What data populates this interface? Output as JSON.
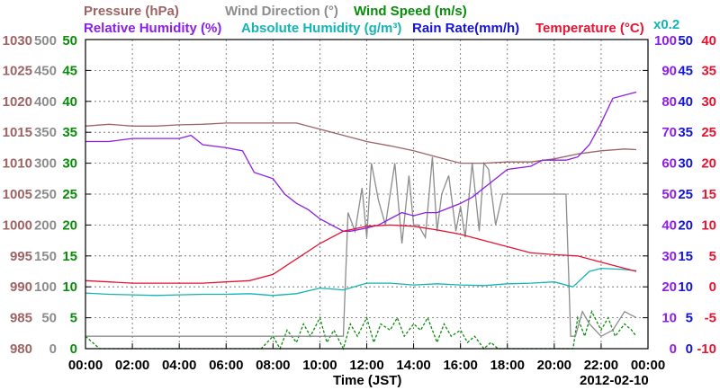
{
  "chart_data": {
    "type": "line",
    "date_label": "2012-02-10",
    "xlabel": "Time (JST)",
    "x_ticks": [
      "00:00",
      "02:00",
      "04:00",
      "06:00",
      "08:00",
      "10:00",
      "12:00",
      "14:00",
      "16:00",
      "18:00",
      "20:00",
      "22:00",
      "00:00"
    ],
    "xlim_hours": [
      0,
      24
    ],
    "grid": true,
    "legend_row1": [
      {
        "text": "Pressure (hPa)",
        "color": "#9c6464"
      },
      {
        "text": "Wind Direction (°)",
        "color": "#8c8c8c"
      },
      {
        "text": "Wind Speed (m/s)",
        "color": "#0a8c0a"
      }
    ],
    "legend_row2": [
      {
        "text": "Relative Humidity (%)",
        "color": "#8c1ee6"
      },
      {
        "text": "Absolute Humidity (g/m³)",
        "color": "#14b4b4"
      },
      {
        "text": "Rain Rate(mm/h)",
        "color": "#1414d2"
      },
      {
        "text": "Temperature (°C)",
        "color": "#e61432"
      }
    ],
    "multiplier_label": "x0.2",
    "multiplier_color": "#14b4b4",
    "axes": {
      "pressure": {
        "color": "#9c6464",
        "ticks": [
          "980",
          "985",
          "990",
          "995",
          "1000",
          "1005",
          "1010",
          "1015",
          "1020",
          "1025",
          "1030"
        ],
        "range": [
          980,
          1030
        ]
      },
      "wind_direction": {
        "color": "#8c8c8c",
        "ticks": [
          "0",
          "50",
          "100",
          "150",
          "200",
          "250",
          "300",
          "350",
          "400",
          "450",
          "500"
        ],
        "range": [
          0,
          500
        ]
      },
      "wind_speed": {
        "color": "#0a8c0a",
        "ticks": [
          "0",
          "5",
          "10",
          "15",
          "20",
          "25",
          "30",
          "35",
          "40",
          "45",
          "50"
        ],
        "range": [
          0,
          50
        ]
      },
      "relative_humidity": {
        "color": "#8c1ee6",
        "ticks": [
          "0",
          "10",
          "20",
          "30",
          "40",
          "50",
          "60",
          "70",
          "80",
          "90",
          "100"
        ],
        "range": [
          0,
          100
        ]
      },
      "absolute_humidity_rain": {
        "color": "#1414d2",
        "ticks": [
          "0",
          "5",
          "10",
          "15",
          "20",
          "25",
          "30",
          "35",
          "40",
          "45",
          "50"
        ],
        "range": [
          0,
          50
        ]
      },
      "temperature": {
        "color": "#e61432",
        "ticks": [
          "-10",
          "-5",
          "0",
          "5",
          "10",
          "15",
          "20",
          "25",
          "30",
          "35",
          "40"
        ],
        "range": [
          -10,
          40
        ]
      }
    },
    "series": [
      {
        "name": "Pressure (hPa)",
        "axis": "pressure",
        "color": "#9c6464",
        "x": [
          0,
          1,
          2,
          3,
          4,
          5,
          6,
          7,
          8,
          9,
          10,
          11,
          12,
          13,
          14,
          15,
          16,
          17,
          18,
          19,
          20,
          21,
          22,
          23,
          23.5
        ],
        "values": [
          1016.0,
          1016.3,
          1016.0,
          1016.0,
          1016.2,
          1016.3,
          1016.5,
          1016.5,
          1016.5,
          1016.5,
          1015.5,
          1014.5,
          1013.5,
          1012.8,
          1012.0,
          1011.0,
          1010.0,
          1010.0,
          1010.2,
          1010.2,
          1010.7,
          1011.5,
          1012.0,
          1012.3,
          1012.2
        ]
      },
      {
        "name": "Relative Humidity (%)",
        "axis": "relative_humidity",
        "color": "#8c1ee6",
        "x": [
          0,
          1,
          2,
          3,
          4,
          4.5,
          5,
          6,
          6.7,
          7.2,
          8,
          8.5,
          9,
          9.5,
          10,
          10.5,
          11,
          11.3,
          12,
          12.5,
          13,
          13.5,
          14,
          14.5,
          15,
          16,
          16.5,
          17,
          18,
          19,
          19.5,
          20,
          20.5,
          21,
          21.5,
          22,
          22.5,
          23,
          23.5
        ],
        "values": [
          67,
          67,
          68,
          68,
          68,
          69,
          66,
          65,
          64,
          57,
          55,
          50,
          47,
          45,
          42,
          40,
          38,
          38,
          39,
          40,
          42,
          44,
          43,
          44,
          44,
          47,
          49,
          52,
          58,
          59,
          61,
          61,
          61,
          62,
          66,
          73,
          81,
          82,
          83
        ]
      },
      {
        "name": "Absolute Humidity (g/m³)",
        "axis": "absolute_humidity_rain",
        "color": "#14b4b4",
        "x": [
          0,
          1,
          2,
          3,
          4,
          5,
          6,
          7,
          8,
          9,
          10,
          11,
          12,
          13,
          14,
          15,
          16,
          17,
          18,
          19,
          20,
          20.8,
          21.5,
          22,
          23,
          23.5
        ],
        "values": [
          9.0,
          8.8,
          8.7,
          8.6,
          8.7,
          8.8,
          8.8,
          8.9,
          8.6,
          8.9,
          9.8,
          9.5,
          10.6,
          10.6,
          10.3,
          10.5,
          10.3,
          10.2,
          10.5,
          10.6,
          10.8,
          10.0,
          12.5,
          13.0,
          12.8,
          12.6
        ]
      },
      {
        "name": "Temperature (°C)",
        "axis": "temperature",
        "color": "#e61432",
        "x": [
          0,
          1,
          2,
          3,
          4,
          5,
          6,
          7,
          8,
          9,
          10,
          11,
          12,
          13,
          14,
          15,
          16,
          17,
          18,
          19,
          20,
          21,
          22,
          23,
          23.5
        ],
        "values": [
          1.0,
          0.8,
          0.6,
          0.6,
          0.6,
          0.6,
          0.8,
          1.0,
          2.0,
          4.5,
          7.0,
          9.0,
          9.8,
          10.0,
          9.8,
          9.2,
          8.5,
          7.5,
          6.5,
          5.5,
          5.2,
          5.0,
          4.0,
          3.0,
          2.5
        ]
      },
      {
        "name": "Wind Direction (°)",
        "axis": "wind_direction",
        "color": "#8c8c8c",
        "x": [
          0,
          8,
          9,
          10,
          10.5,
          10.8,
          11,
          11.2,
          11.5,
          11.8,
          12,
          12.2,
          12.5,
          12.8,
          13,
          13.2,
          13.5,
          13.8,
          14,
          14.2,
          14.5,
          14.8,
          15,
          15.2,
          15.5,
          15.8,
          16,
          16.2,
          16.5,
          16.8,
          17,
          17.2,
          17.5,
          17.8,
          18,
          19,
          20,
          20.5,
          20.7,
          20.9,
          21.2,
          21.5,
          22,
          22.5,
          23,
          23.5
        ],
        "values": [
          20,
          20,
          20,
          20,
          20,
          20,
          20,
          220,
          190,
          260,
          180,
          300,
          240,
          200,
          250,
          300,
          170,
          280,
          200,
          200,
          180,
          310,
          190,
          250,
          280,
          190,
          230,
          180,
          300,
          190,
          300,
          290,
          200,
          250,
          250,
          250,
          250,
          250,
          20,
          20,
          60,
          40,
          20,
          30,
          60,
          50
        ]
      },
      {
        "name": "Wind Speed (m/s)",
        "axis": "wind_speed",
        "color": "#0a8c0a",
        "x": [
          0,
          0.3,
          0.6,
          1,
          2,
          3,
          4,
          5,
          6,
          7,
          7.5,
          8,
          8.3,
          8.6,
          9,
          9.3,
          9.6,
          10,
          10.3,
          10.6,
          11,
          11.3,
          11.6,
          12,
          12.3,
          12.6,
          13,
          13.3,
          13.6,
          14,
          14.3,
          14.6,
          15,
          15.3,
          15.6,
          16,
          16.3,
          16.6,
          17,
          17.3,
          17.6,
          18,
          19,
          20,
          20.8,
          21,
          21.3,
          21.6,
          22,
          22.3,
          22.6,
          23,
          23.3,
          23.5
        ],
        "values": [
          2,
          1,
          0,
          0,
          0,
          0,
          0,
          0,
          0,
          0,
          0,
          2,
          0,
          3,
          1,
          4,
          2,
          5,
          1,
          3,
          0,
          4,
          2,
          5,
          1,
          4,
          3,
          5,
          2,
          4,
          3,
          5,
          1,
          4,
          2,
          3,
          1,
          2,
          0,
          1,
          0,
          0,
          0,
          0,
          0,
          5,
          2,
          6,
          3,
          5,
          2,
          4,
          3,
          2
        ]
      }
    ]
  }
}
